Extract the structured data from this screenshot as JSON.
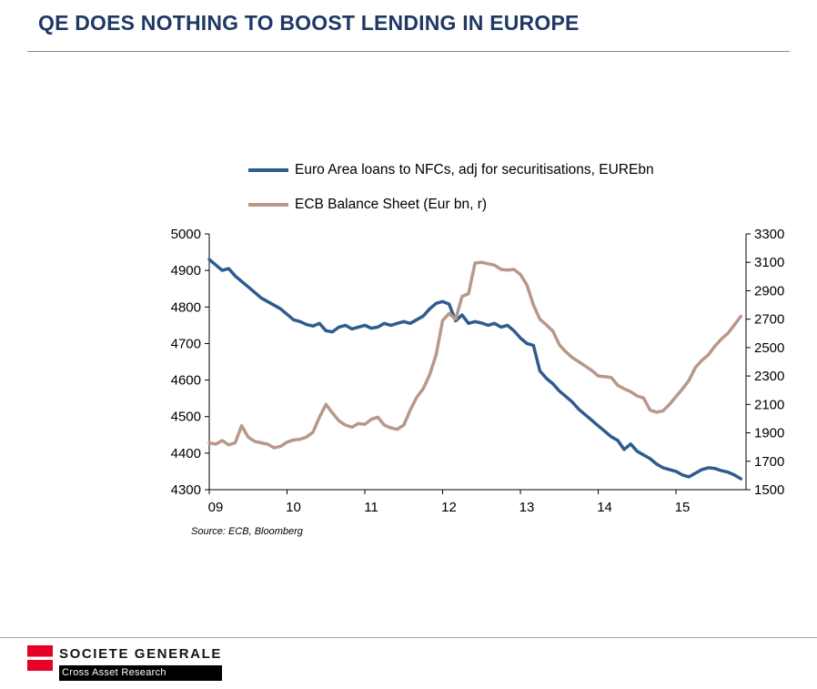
{
  "header": {
    "title": "QE DOES NOTHING TO BOOST LENDING IN EUROPE"
  },
  "source_note": "Source: ECB, Bloomberg",
  "footer": {
    "brand": "SOCIETE GENERALE",
    "division": "Cross Asset Research"
  },
  "colors": {
    "title": "#1F3864",
    "loans_line": "#2E5C8E",
    "ecb_line": "#B79889",
    "logo_red": "#E60028"
  },
  "chart_data": {
    "type": "line",
    "title": "",
    "grid": false,
    "legend_position": "top",
    "x_axis": {
      "min": 2009.0,
      "max": 2015.9,
      "tick_positions": [
        2009,
        2010,
        2011,
        2012,
        2013,
        2014,
        2015
      ],
      "tick_labels": [
        "09",
        "10",
        "11",
        "12",
        "13",
        "14",
        "15"
      ]
    },
    "left_axis": {
      "min": 4300,
      "max": 5000,
      "ticks": [
        4300,
        4400,
        4500,
        4600,
        4700,
        4800,
        4900,
        5000
      ]
    },
    "right_axis": {
      "min": 1500,
      "max": 3300,
      "ticks": [
        1500,
        1700,
        1900,
        2100,
        2300,
        2500,
        2700,
        2900,
        3100,
        3300
      ]
    },
    "x_start": 2009.0,
    "x_step_months": 1,
    "series": [
      {
        "name": "Euro Area loans to NFCs, adj for securitisations, EUREbn",
        "axis": "left",
        "color": "#2E5C8E",
        "values": [
          4930,
          4915,
          4900,
          4905,
          4885,
          4870,
          4855,
          4840,
          4825,
          4815,
          4805,
          4795,
          4780,
          4765,
          4760,
          4752,
          4748,
          4755,
          4735,
          4732,
          4745,
          4750,
          4740,
          4745,
          4750,
          4742,
          4745,
          4755,
          4750,
          4755,
          4760,
          4755,
          4765,
          4775,
          4795,
          4810,
          4815,
          4808,
          4762,
          4778,
          4755,
          4760,
          4756,
          4750,
          4755,
          4745,
          4750,
          4735,
          4715,
          4700,
          4695,
          4625,
          4605,
          4590,
          4570,
          4555,
          4540,
          4520,
          4505,
          4490,
          4475,
          4460,
          4445,
          4435,
          4410,
          4425,
          4405,
          4395,
          4385,
          4370,
          4360,
          4355,
          4350,
          4340,
          4335,
          4345,
          4355,
          4360,
          4358,
          4352,
          4348,
          4340,
          4330
        ]
      },
      {
        "name": "ECB Balance Sheet (Eur bn, r)",
        "axis": "right",
        "color": "#B79889",
        "values": [
          1830,
          1820,
          1845,
          1815,
          1830,
          1950,
          1870,
          1840,
          1830,
          1820,
          1795,
          1805,
          1835,
          1850,
          1855,
          1870,
          1905,
          2010,
          2100,
          2040,
          1985,
          1955,
          1940,
          1965,
          1960,
          1995,
          2010,
          1955,
          1935,
          1925,
          1955,
          2060,
          2150,
          2210,
          2310,
          2450,
          2690,
          2740,
          2700,
          2860,
          2880,
          3095,
          3100,
          3090,
          3080,
          3050,
          3045,
          3050,
          3015,
          2940,
          2800,
          2700,
          2660,
          2615,
          2520,
          2470,
          2430,
          2400,
          2370,
          2340,
          2300,
          2295,
          2290,
          2235,
          2210,
          2190,
          2160,
          2145,
          2060,
          2045,
          2055,
          2100,
          2155,
          2210,
          2270,
          2360,
          2410,
          2450,
          2510,
          2560,
          2600,
          2660,
          2720
        ]
      }
    ]
  }
}
